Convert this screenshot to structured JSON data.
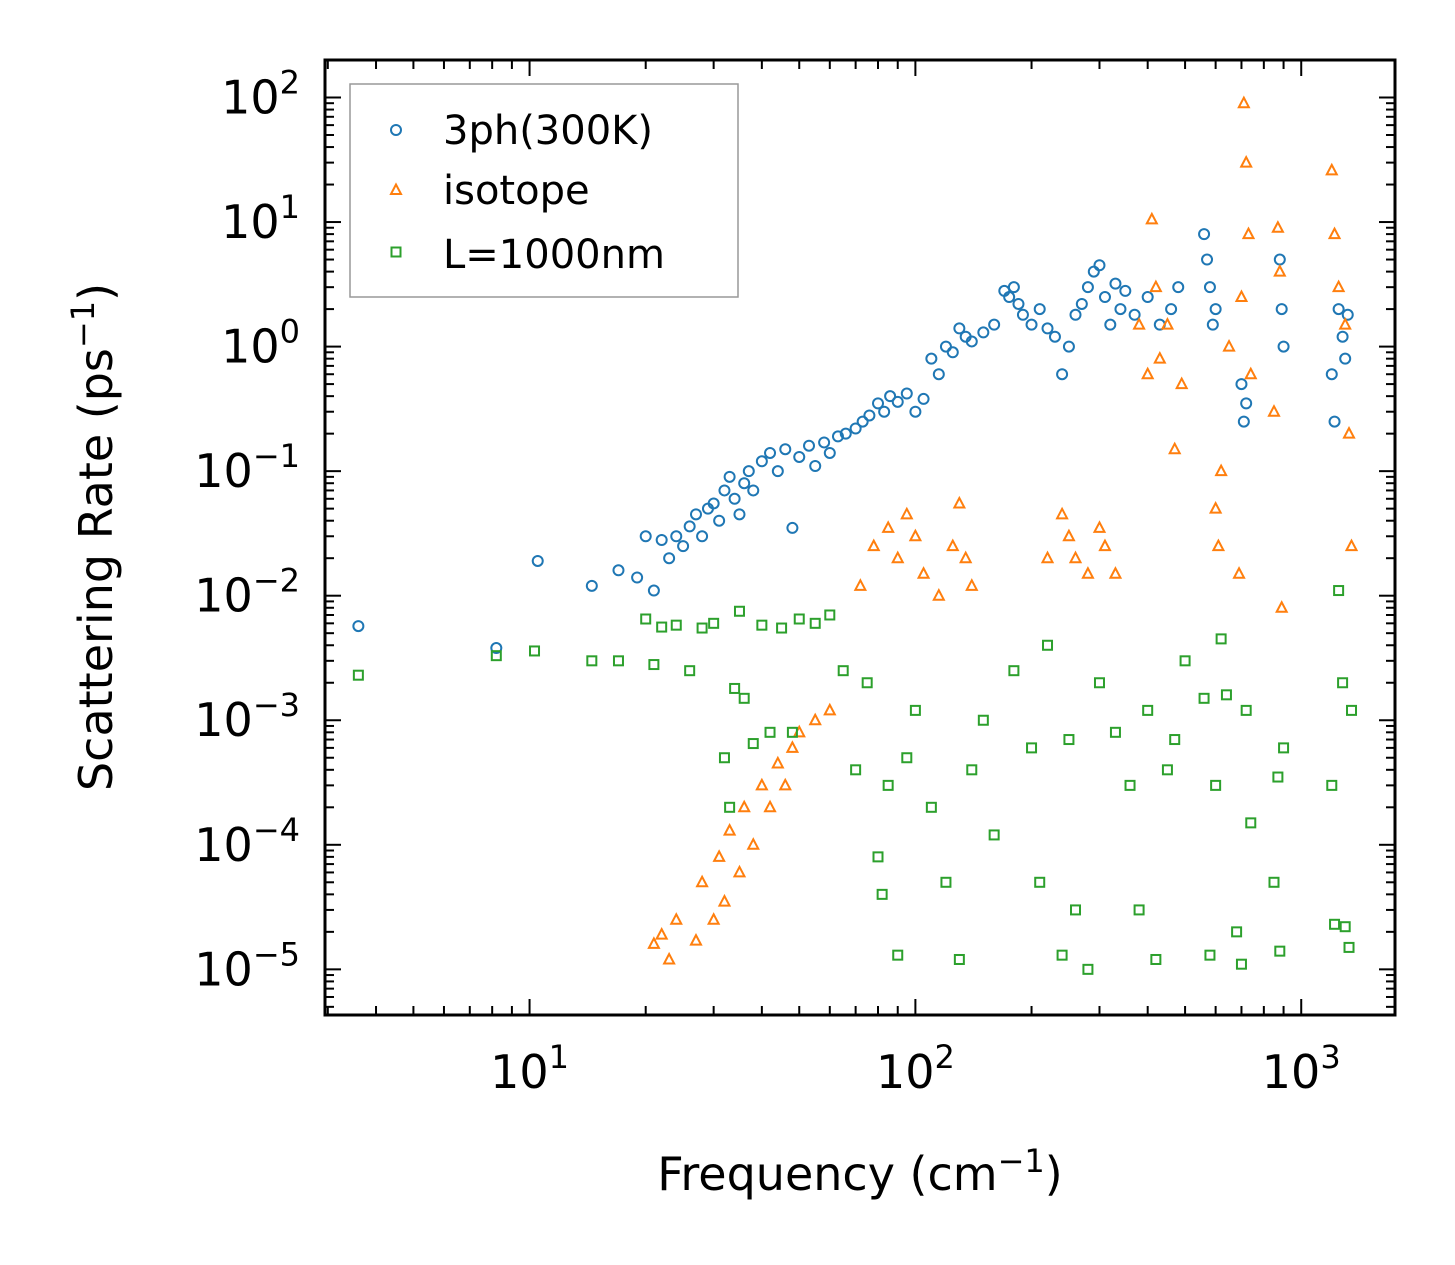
{
  "chart_data": {
    "type": "scatter",
    "title": "",
    "xscale": "log",
    "yscale": "log",
    "xlabel": "Frequency (cm",
    "xlabel_sup": "−1",
    "xlabel_tail": ")",
    "ylabel": "Scattering Rate (ps",
    "ylabel_sup": "−1",
    "ylabel_tail": ")",
    "xlim": [
      2.95,
      1750
    ],
    "ylim": [
      4.3e-06,
      200
    ],
    "xticks": [
      {
        "value": 10,
        "base": "10",
        "exp": "1"
      },
      {
        "value": 100,
        "base": "10",
        "exp": "2"
      },
      {
        "value": 1000,
        "base": "10",
        "exp": "3"
      }
    ],
    "yticks": [
      {
        "value": 1e-05,
        "base": "10",
        "exp": "−5"
      },
      {
        "value": 0.0001,
        "base": "10",
        "exp": "−4"
      },
      {
        "value": 0.001,
        "base": "10",
        "exp": "−3"
      },
      {
        "value": 0.01,
        "base": "10",
        "exp": "−2"
      },
      {
        "value": 0.1,
        "base": "10",
        "exp": "−1"
      },
      {
        "value": 1,
        "base": "10",
        "exp": "0"
      },
      {
        "value": 10,
        "base": "10",
        "exp": "1"
      },
      {
        "value": 100,
        "base": "10",
        "exp": "2"
      }
    ],
    "legend_position": "top-left",
    "series": [
      {
        "name": "3ph(300K)",
        "marker": "circle",
        "color": "#1f77b4",
        "points": [
          [
            3.6,
            0.0057
          ],
          [
            8.2,
            0.0038
          ],
          [
            10.5,
            0.019
          ],
          [
            14.5,
            0.012
          ],
          [
            17,
            0.016
          ],
          [
            19,
            0.014
          ],
          [
            20,
            0.03
          ],
          [
            21,
            0.011
          ],
          [
            22,
            0.028
          ],
          [
            23,
            0.02
          ],
          [
            24,
            0.03
          ],
          [
            25,
            0.025
          ],
          [
            26,
            0.036
          ],
          [
            27,
            0.045
          ],
          [
            28,
            0.03
          ],
          [
            29,
            0.05
          ],
          [
            30,
            0.055
          ],
          [
            31,
            0.04
          ],
          [
            32,
            0.07
          ],
          [
            33,
            0.09
          ],
          [
            34,
            0.06
          ],
          [
            35,
            0.045
          ],
          [
            36,
            0.08
          ],
          [
            37,
            0.1
          ],
          [
            38,
            0.07
          ],
          [
            40,
            0.12
          ],
          [
            42,
            0.14
          ],
          [
            44,
            0.1
          ],
          [
            46,
            0.15
          ],
          [
            48,
            0.035
          ],
          [
            50,
            0.13
          ],
          [
            53,
            0.16
          ],
          [
            55,
            0.11
          ],
          [
            58,
            0.17
          ],
          [
            60,
            0.14
          ],
          [
            63,
            0.19
          ],
          [
            66,
            0.2
          ],
          [
            70,
            0.22
          ],
          [
            73,
            0.25
          ],
          [
            76,
            0.28
          ],
          [
            80,
            0.35
          ],
          [
            83,
            0.3
          ],
          [
            86,
            0.4
          ],
          [
            90,
            0.36
          ],
          [
            95,
            0.42
          ],
          [
            100,
            0.3
          ],
          [
            105,
            0.38
          ],
          [
            110,
            0.8
          ],
          [
            115,
            0.6
          ],
          [
            120,
            1.0
          ],
          [
            125,
            0.9
          ],
          [
            130,
            1.4
          ],
          [
            135,
            1.2
          ],
          [
            140,
            1.1
          ],
          [
            150,
            1.3
          ],
          [
            160,
            1.5
          ],
          [
            170,
            2.8
          ],
          [
            175,
            2.5
          ],
          [
            180,
            3.0
          ],
          [
            185,
            2.2
          ],
          [
            190,
            1.8
          ],
          [
            200,
            1.5
          ],
          [
            210,
            2.0
          ],
          [
            220,
            1.4
          ],
          [
            230,
            1.2
          ],
          [
            240,
            0.6
          ],
          [
            250,
            1.0
          ],
          [
            260,
            1.8
          ],
          [
            270,
            2.2
          ],
          [
            280,
            3.0
          ],
          [
            290,
            4.0
          ],
          [
            300,
            4.5
          ],
          [
            310,
            2.5
          ],
          [
            320,
            1.5
          ],
          [
            330,
            3.2
          ],
          [
            340,
            2.0
          ],
          [
            350,
            2.8
          ],
          [
            370,
            1.8
          ],
          [
            400,
            2.5
          ],
          [
            430,
            1.5
          ],
          [
            460,
            2.0
          ],
          [
            480,
            3.0
          ],
          [
            560,
            8.0
          ],
          [
            570,
            5.0
          ],
          [
            580,
            3.0
          ],
          [
            590,
            1.5
          ],
          [
            600,
            2.0
          ],
          [
            700,
            0.5
          ],
          [
            710,
            0.25
          ],
          [
            720,
            0.35
          ],
          [
            880,
            5.0
          ],
          [
            890,
            2.0
          ],
          [
            900,
            1.0
          ],
          [
            1200,
            0.6
          ],
          [
            1220,
            0.25
          ],
          [
            1250,
            2.0
          ],
          [
            1280,
            1.2
          ],
          [
            1300,
            0.8
          ],
          [
            1320,
            1.8
          ]
        ]
      },
      {
        "name": "isotope",
        "marker": "triangle",
        "color": "#ff7f0e",
        "points": [
          [
            21,
            1.6e-05
          ],
          [
            22,
            1.9e-05
          ],
          [
            23,
            1.2e-05
          ],
          [
            24,
            2.5e-05
          ],
          [
            27,
            1.7e-05
          ],
          [
            28,
            5e-05
          ],
          [
            30,
            2.5e-05
          ],
          [
            31,
            8e-05
          ],
          [
            32,
            3.5e-05
          ],
          [
            33,
            0.00013
          ],
          [
            35,
            6e-05
          ],
          [
            36,
            0.0002
          ],
          [
            38,
            0.0001
          ],
          [
            40,
            0.0003
          ],
          [
            42,
            0.0002
          ],
          [
            44,
            0.00045
          ],
          [
            46,
            0.0003
          ],
          [
            48,
            0.0006
          ],
          [
            50,
            0.0008
          ],
          [
            55,
            0.001
          ],
          [
            60,
            0.0012
          ],
          [
            72,
            0.012
          ],
          [
            78,
            0.025
          ],
          [
            85,
            0.035
          ],
          [
            90,
            0.02
          ],
          [
            95,
            0.045
          ],
          [
            100,
            0.03
          ],
          [
            105,
            0.015
          ],
          [
            115,
            0.01
          ],
          [
            125,
            0.025
          ],
          [
            130,
            0.055
          ],
          [
            135,
            0.02
          ],
          [
            140,
            0.012
          ],
          [
            220,
            0.02
          ],
          [
            240,
            0.045
          ],
          [
            250,
            0.03
          ],
          [
            260,
            0.02
          ],
          [
            280,
            0.015
          ],
          [
            300,
            0.035
          ],
          [
            310,
            0.025
          ],
          [
            330,
            0.015
          ],
          [
            380,
            1.5
          ],
          [
            400,
            0.6
          ],
          [
            410,
            10.5
          ],
          [
            420,
            3.0
          ],
          [
            430,
            0.8
          ],
          [
            450,
            1.5
          ],
          [
            470,
            0.15
          ],
          [
            490,
            0.5
          ],
          [
            600,
            0.05
          ],
          [
            610,
            0.025
          ],
          [
            620,
            0.1
          ],
          [
            650,
            1.0
          ],
          [
            690,
            0.015
          ],
          [
            700,
            2.5
          ],
          [
            710,
            90
          ],
          [
            720,
            30
          ],
          [
            730,
            8.0
          ],
          [
            740,
            0.6
          ],
          [
            850,
            0.3
          ],
          [
            870,
            9.0
          ],
          [
            880,
            4.0
          ],
          [
            890,
            0.008
          ],
          [
            1200,
            26
          ],
          [
            1220,
            8.0
          ],
          [
            1250,
            3.0
          ],
          [
            1300,
            1.5
          ],
          [
            1330,
            0.2
          ],
          [
            1350,
            0.025
          ]
        ]
      },
      {
        "name": "L=1000nm",
        "marker": "square",
        "color": "#2ca02c",
        "points": [
          [
            3.6,
            0.0023
          ],
          [
            8.2,
            0.0033
          ],
          [
            10.3,
            0.0036
          ],
          [
            14.5,
            0.003
          ],
          [
            17,
            0.003
          ],
          [
            20,
            0.0065
          ],
          [
            21,
            0.0028
          ],
          [
            22,
            0.0056
          ],
          [
            24,
            0.0058
          ],
          [
            26,
            0.0025
          ],
          [
            28,
            0.0055
          ],
          [
            30,
            0.006
          ],
          [
            32,
            0.0005
          ],
          [
            33,
            0.0002
          ],
          [
            34,
            0.0018
          ],
          [
            35,
            0.0075
          ],
          [
            36,
            0.0015
          ],
          [
            38,
            0.00065
          ],
          [
            40,
            0.0058
          ],
          [
            42,
            0.0008
          ],
          [
            45,
            0.0055
          ],
          [
            48,
            0.0008
          ],
          [
            50,
            0.0065
          ],
          [
            55,
            0.006
          ],
          [
            60,
            0.007
          ],
          [
            65,
            0.0025
          ],
          [
            70,
            0.0004
          ],
          [
            75,
            0.002
          ],
          [
            80,
            8e-05
          ],
          [
            82,
            4e-05
          ],
          [
            85,
            0.0003
          ],
          [
            90,
            1.3e-05
          ],
          [
            95,
            0.0005
          ],
          [
            100,
            0.0012
          ],
          [
            110,
            0.0002
          ],
          [
            120,
            5e-05
          ],
          [
            130,
            1.2e-05
          ],
          [
            140,
            0.0004
          ],
          [
            150,
            0.001
          ],
          [
            160,
            0.00012
          ],
          [
            180,
            0.0025
          ],
          [
            200,
            0.0006
          ],
          [
            210,
            5e-05
          ],
          [
            220,
            0.004
          ],
          [
            240,
            1.3e-05
          ],
          [
            250,
            0.0007
          ],
          [
            260,
            3e-05
          ],
          [
            280,
            1e-05
          ],
          [
            300,
            0.002
          ],
          [
            330,
            0.0008
          ],
          [
            360,
            0.0003
          ],
          [
            380,
            3e-05
          ],
          [
            400,
            0.0012
          ],
          [
            420,
            1.2e-05
          ],
          [
            450,
            0.0004
          ],
          [
            470,
            0.0007
          ],
          [
            500,
            0.003
          ],
          [
            560,
            0.0015
          ],
          [
            580,
            1.3e-05
          ],
          [
            600,
            0.0003
          ],
          [
            620,
            0.0045
          ],
          [
            640,
            0.0016
          ],
          [
            680,
            2e-05
          ],
          [
            700,
            1.1e-05
          ],
          [
            720,
            0.0012
          ],
          [
            740,
            0.00015
          ],
          [
            850,
            5e-05
          ],
          [
            870,
            0.00035
          ],
          [
            880,
            1.4e-05
          ],
          [
            900,
            0.0006
          ],
          [
            1200,
            0.0003
          ],
          [
            1220,
            2.3e-05
          ],
          [
            1250,
            0.011
          ],
          [
            1280,
            0.002
          ],
          [
            1300,
            2.2e-05
          ],
          [
            1330,
            1.5e-05
          ],
          [
            1350,
            0.0012
          ]
        ]
      }
    ]
  }
}
